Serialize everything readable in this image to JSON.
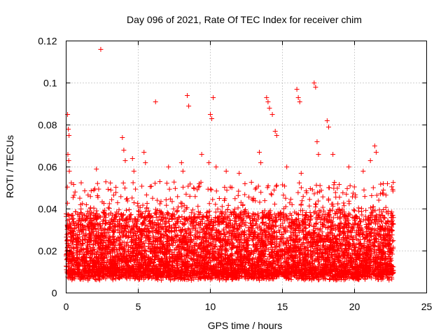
{
  "chart_data": {
    "type": "scatter",
    "title": "Day 096 of 2021, Rate Of TEC Index for receiver chim",
    "xlabel": "GPS time / hours",
    "ylabel": "ROTI / TECUs",
    "xlim": [
      0,
      25
    ],
    "ylim": [
      0,
      0.12
    ],
    "xticks": [
      0,
      5,
      10,
      15,
      20,
      25
    ],
    "xtick_labels": [
      "0",
      "5",
      "10",
      "15",
      "20",
      "25"
    ],
    "yticks": [
      0,
      0.02,
      0.04,
      0.06,
      0.08,
      0.1,
      0.12
    ],
    "ytick_labels": [
      "0",
      "0.02",
      "0.04",
      "0.06",
      "0.08",
      "0.1",
      "0.12"
    ],
    "grid": true,
    "marker": "plus",
    "color": "#ff0000",
    "data_range_hours": [
      0,
      22.7
    ],
    "dense_band": [
      0.006,
      0.04
    ],
    "series": [
      {
        "name": "ROTI",
        "sample_points": [
          [
            0.1,
            0.085
          ],
          [
            0.15,
            0.078
          ],
          [
            0.2,
            0.075
          ],
          [
            0.12,
            0.066
          ],
          [
            0.18,
            0.063
          ],
          [
            0.22,
            0.058
          ],
          [
            1.0,
            0.042
          ],
          [
            1.4,
            0.042
          ],
          [
            2.1,
            0.059
          ],
          [
            2.4,
            0.116
          ],
          [
            3.1,
            0.049
          ],
          [
            3.9,
            0.074
          ],
          [
            4.0,
            0.068
          ],
          [
            4.1,
            0.063
          ],
          [
            4.6,
            0.064
          ],
          [
            4.7,
            0.058
          ],
          [
            5.4,
            0.067
          ],
          [
            5.5,
            0.062
          ],
          [
            6.2,
            0.091
          ],
          [
            6.5,
            0.053
          ],
          [
            7.1,
            0.06
          ],
          [
            8.0,
            0.062
          ],
          [
            8.1,
            0.058
          ],
          [
            8.4,
            0.094
          ],
          [
            8.5,
            0.089
          ],
          [
            9.4,
            0.066
          ],
          [
            9.9,
            0.062
          ],
          [
            10.0,
            0.085
          ],
          [
            10.1,
            0.083
          ],
          [
            10.2,
            0.093
          ],
          [
            10.4,
            0.06
          ],
          [
            11.1,
            0.058
          ],
          [
            12.0,
            0.057
          ],
          [
            12.4,
            0.052
          ],
          [
            13.4,
            0.067
          ],
          [
            13.5,
            0.062
          ],
          [
            13.9,
            0.093
          ],
          [
            14.0,
            0.091
          ],
          [
            14.1,
            0.088
          ],
          [
            14.3,
            0.085
          ],
          [
            14.5,
            0.077
          ],
          [
            14.6,
            0.075
          ],
          [
            15.3,
            0.06
          ],
          [
            16.0,
            0.097
          ],
          [
            16.1,
            0.093
          ],
          [
            16.2,
            0.091
          ],
          [
            16.3,
            0.057
          ],
          [
            17.2,
            0.1
          ],
          [
            17.3,
            0.098
          ],
          [
            17.4,
            0.072
          ],
          [
            17.5,
            0.066
          ],
          [
            18.1,
            0.082
          ],
          [
            18.2,
            0.079
          ],
          [
            18.5,
            0.066
          ],
          [
            19.6,
            0.06
          ],
          [
            20.6,
            0.058
          ],
          [
            21.1,
            0.063
          ],
          [
            21.4,
            0.07
          ],
          [
            21.5,
            0.067
          ],
          [
            22.0,
            0.049
          ]
        ]
      }
    ]
  }
}
